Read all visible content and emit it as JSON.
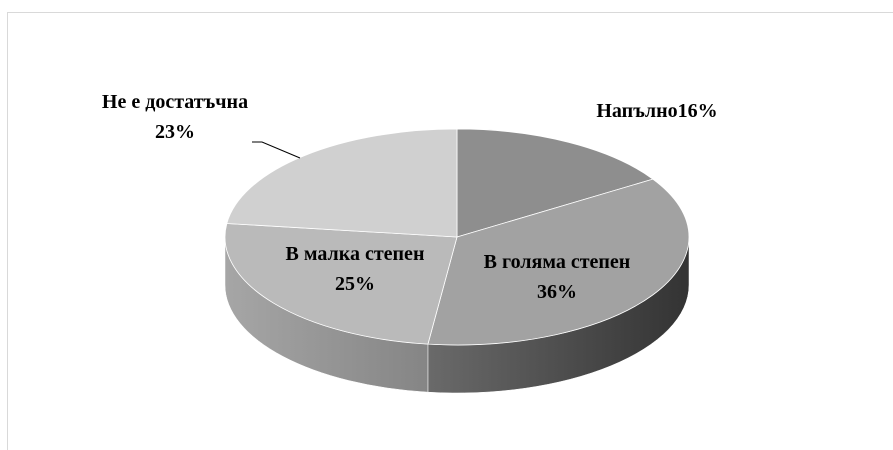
{
  "chart_data": {
    "type": "pie",
    "categories": [
      "Напълно",
      "В голяма степен",
      "В малка степен",
      "Не е достатъчна"
    ],
    "values": [
      16,
      36,
      25,
      23
    ],
    "value_labels": [
      "16%",
      "36%",
      "25%",
      "23%"
    ],
    "colors": [
      "#8e8e8e",
      "#a2a2a2",
      "#bababa",
      "#d0d0d0"
    ]
  }
}
